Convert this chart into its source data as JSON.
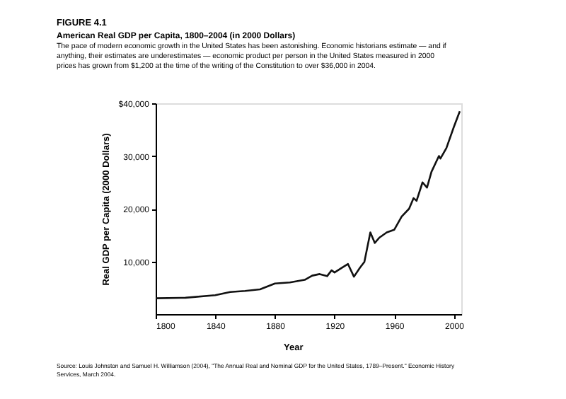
{
  "chart_data": {
    "type": "line",
    "title": "American Real GDP per Capita, 1800–2004 (in 2000 Dollars)",
    "subtitle": "The pace of modern economic growth in the United States has been astonishing. Economic historians estimate — and if anything, their estimates are underestimates — economic product per person in the United States measured in 2000 prices has grown from $1,200 at the time of the writing of the Constitution to over $36,000 in 2004.",
    "annotations": [
      "FIGURE 4.1",
      "Source: Louis Johnston and Samuel H. Williamson (2004), \"The Annual Real and Nominal GDP for the United States, 1789–Present.\" Economic History Services, March 2004."
    ],
    "xlabel": "Year",
    "ylabel": "Real GDP per Capita (2000 Dollars)",
    "x": [
      1800,
      1820,
      1840,
      1850,
      1860,
      1870,
      1880,
      1890,
      1900,
      1905,
      1910,
      1915,
      1918,
      1920,
      1925,
      1929,
      1933,
      1937,
      1940,
      1944,
      1947,
      1950,
      1955,
      1960,
      1965,
      1970,
      1973,
      1975,
      1979,
      1982,
      1985,
      1990,
      1991,
      1995,
      2000,
      2004
    ],
    "series": [
      {
        "color": "#111111",
        "values": [
          3000,
          3100,
          3600,
          4200,
          4400,
          4700,
          5800,
          6000,
          6500,
          7300,
          7600,
          7200,
          8300,
          7900,
          8800,
          9500,
          7100,
          8800,
          9900,
          15500,
          13500,
          14500,
          15500,
          16000,
          18500,
          20000,
          22000,
          21500,
          25000,
          24000,
          27000,
          30000,
          29500,
          31500,
          35500,
          38500
        ]
      }
    ],
    "xlim": [
      1800,
      2005
    ],
    "xticks": [
      1800,
      1840,
      1880,
      1920,
      1960,
      2000
    ],
    "ylim": [
      0,
      40000
    ],
    "yticks": [
      {
        "value": 10000,
        "label": "10,000"
      },
      {
        "value": 20000,
        "label": "20,000"
      },
      {
        "value": 30000,
        "label": "30,000"
      },
      {
        "value": 40000,
        "label": "$40,000"
      }
    ],
    "grid": false,
    "marker": "none",
    "line_style": "solid"
  }
}
